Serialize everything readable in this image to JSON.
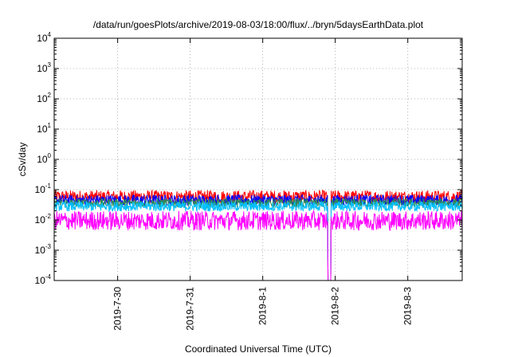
{
  "chart_data": {
    "type": "line",
    "title": "/data/run/goesPlots/archive/2019-08-03/18:00/flux/../bryn/5daysEarthData.plot",
    "xlabel": "Coordinated Universal Time (UTC)",
    "ylabel": "cSv/day",
    "y_scale": "log",
    "ylim": [
      0.0001,
      10000
    ],
    "y_ticks": [
      {
        "base": "10",
        "exp": "-4",
        "value": 0.0001
      },
      {
        "base": "10",
        "exp": "-3",
        "value": 0.001
      },
      {
        "base": "10",
        "exp": "-2",
        "value": 0.01
      },
      {
        "base": "10",
        "exp": "-1",
        "value": 0.1
      },
      {
        "base": "10",
        "exp": "0",
        "value": 1
      },
      {
        "base": "10",
        "exp": "1",
        "value": 10
      },
      {
        "base": "10",
        "exp": "2",
        "value": 100
      },
      {
        "base": "10",
        "exp": "3",
        "value": 1000
      },
      {
        "base": "10",
        "exp": "4",
        "value": 10000
      }
    ],
    "xlim": [
      "2019-07-29 03:00",
      "2019-08-03 18:00"
    ],
    "x_ticks": [
      "2019-7-30",
      "2019-7-31",
      "2019-8-1",
      "2019-8-2",
      "2019-8-3"
    ],
    "grid": true,
    "series": [
      {
        "color": "#ff0000",
        "level": 0.058,
        "spread": 0.22
      },
      {
        "color": "#0000ff",
        "level": 0.045,
        "spread": 0.18
      },
      {
        "color": "#2e8b57",
        "level": 0.036,
        "spread": 0.15
      },
      {
        "color": "#00c0ff",
        "level": 0.028,
        "spread": 0.16
      },
      {
        "color": "#ff00ff",
        "level": 0.0095,
        "spread": 0.32
      }
    ],
    "dropout": {
      "start": "2019-08-01 21:30",
      "end": "2019-08-01 22:30",
      "value": 0.0001
    }
  }
}
